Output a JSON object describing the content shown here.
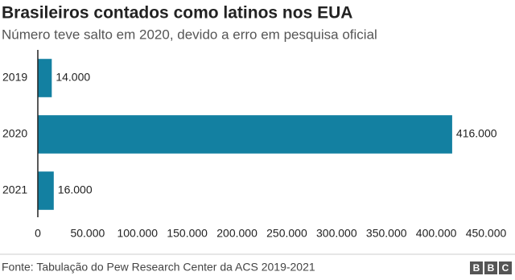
{
  "chart_data": {
    "type": "bar",
    "orientation": "horizontal",
    "title": "Brasileiros contados como latinos nos EUA",
    "subtitle": "Número teve salto em 2020, devido a erro em pesquisa oficial",
    "categories": [
      "2019",
      "2020",
      "2021"
    ],
    "values": [
      14000,
      416000,
      16000
    ],
    "value_labels": [
      "14.000",
      "416.000",
      "16.000"
    ],
    "color": "#1380a1",
    "xlim": [
      0,
      450000
    ],
    "xticks": [
      0,
      {
        "value": 50000,
        "label": "50.000"
      },
      {
        "value": 100000,
        "label": "100.000"
      },
      {
        "value": 150000,
        "label": "150.000"
      },
      {
        "value": 200000,
        "label": "200.000"
      },
      {
        "value": 250000,
        "label": "250.000"
      },
      {
        "value": 300000,
        "label": "300.000"
      },
      {
        "value": 350000,
        "label": "350.000"
      },
      {
        "value": 400000,
        "label": "400.000"
      },
      {
        "value": 450000,
        "label": "450.000"
      }
    ],
    "source": "Fonte: Tabulação do Pew Research Center da ACS 2019-2021",
    "logo": [
      "B",
      "B",
      "C"
    ]
  }
}
